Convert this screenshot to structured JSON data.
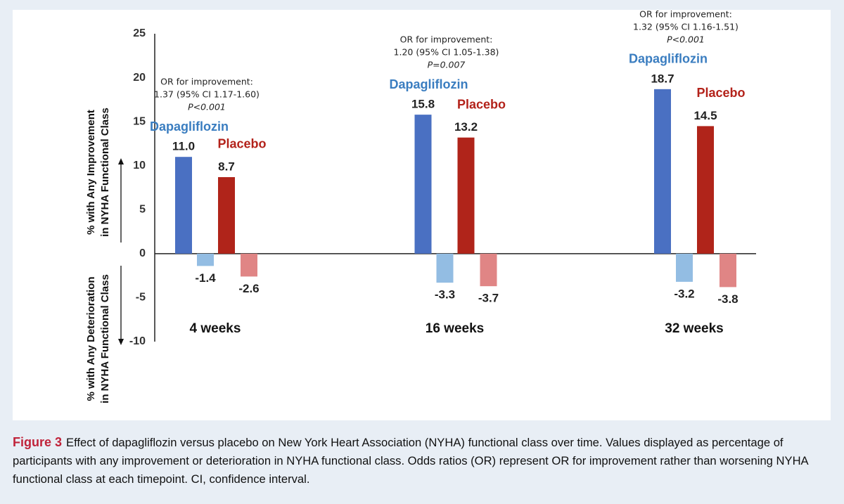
{
  "chart_data": {
    "type": "bar",
    "categories": [
      "4 weeks",
      "16 weeks",
      "32 weeks"
    ],
    "series": [
      {
        "name": "Dapagliflozin",
        "color": "#4a70c2",
        "deterioration_color": "#93bde3",
        "label_color": "#3a7dc0",
        "values": [
          11.0,
          15.8,
          18.7
        ],
        "value_labels": [
          "11.0",
          "15.8",
          "18.7"
        ],
        "deterioration": [
          -1.4,
          -3.3,
          -3.2
        ]
      },
      {
        "name": "Placebo",
        "color": "#b0241a",
        "deterioration_color": "#e08585",
        "label_color": "#b3221a",
        "values": [
          8.7,
          13.2,
          14.5
        ],
        "value_labels": [
          "8.7",
          "13.2",
          "14.5"
        ],
        "deterioration": [
          -2.6,
          -3.7,
          -3.8
        ]
      }
    ],
    "ylim": [
      -10,
      25
    ],
    "yticks": [
      25,
      20,
      15,
      10,
      5,
      0,
      -5,
      -10
    ],
    "y_label_improvement": [
      "% with Any Improvement",
      "in NYHA Functional Class"
    ],
    "y_label_deterioration": [
      "% with Any Deterioration",
      "in NYHA Functional Class"
    ],
    "annotations": [
      [
        "OR for improvement:",
        "1.37 (95% CI 1.17-1.60)",
        "P<0.001"
      ],
      [
        "OR for improvement:",
        "1.20 (95% CI 1.05-1.38)",
        "P=0.007"
      ],
      [
        "OR for improvement:",
        "1.32 (95% CI 1.16-1.51)",
        "P<0.001"
      ]
    ],
    "grid": false
  },
  "caption": {
    "label": "Figure 3",
    "text": "Effect of dapagliflozin versus placebo on New York Heart Association (NYHA) functional class over time. Values displayed as percentage of participants with any improvement or deterioration in NYHA functional class. Odds ratios (OR) represent OR for improvement rather than worsening NYHA functional class at each timepoint. CI, confidence interval."
  }
}
